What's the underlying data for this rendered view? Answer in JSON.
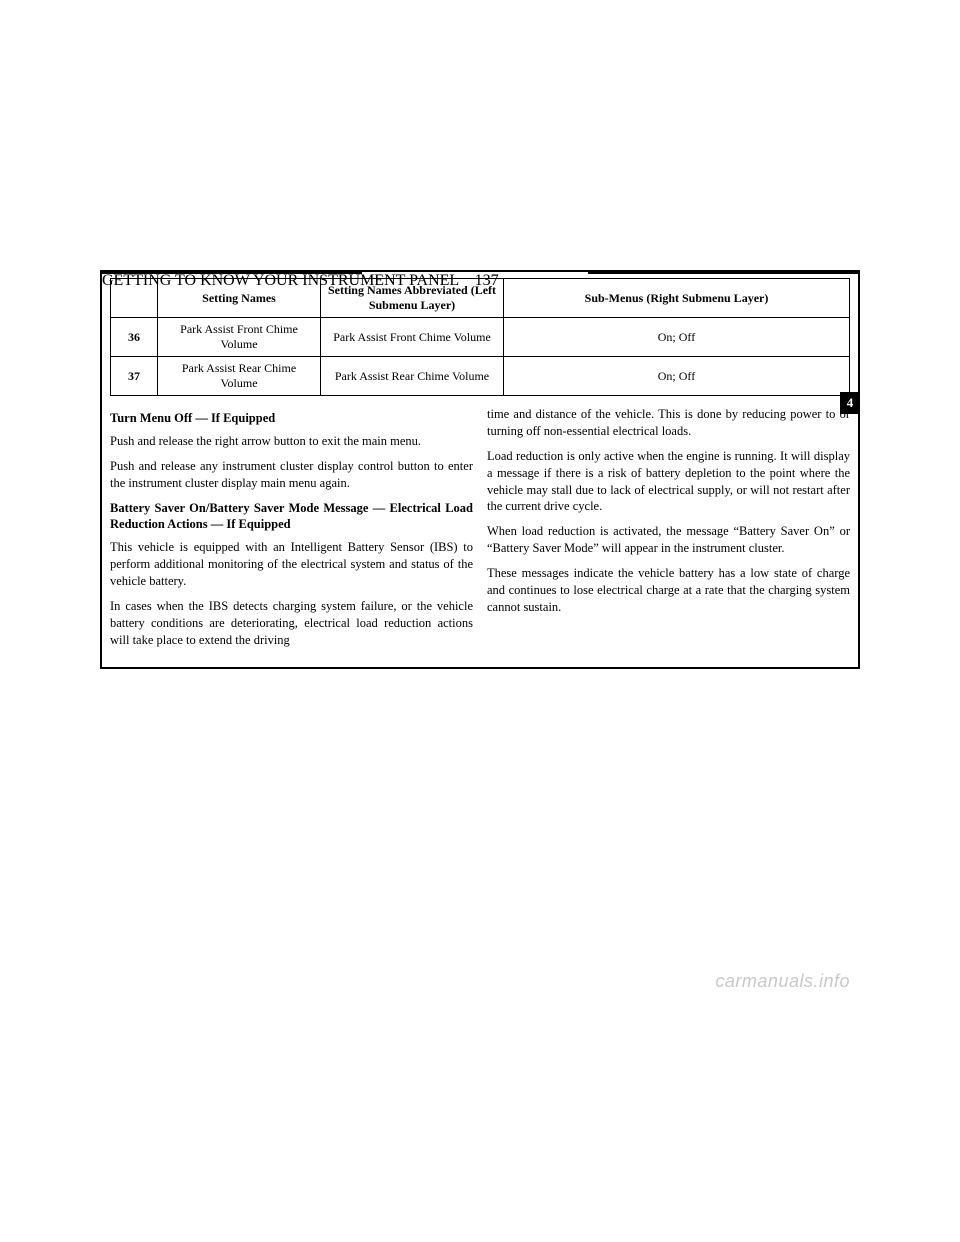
{
  "header": {
    "section_title": "GETTING TO KNOW YOUR INSTRUMENT PANEL",
    "page_number": "137"
  },
  "side_tab": "4",
  "table": {
    "columns": [
      "",
      "Setting Names",
      "Setting Names Abbreviated (Left Submenu Layer)",
      "Sub-Menus (Right Submenu Layer)"
    ],
    "rows": [
      [
        "36",
        "Park Assist Front Chime Volume",
        "Park Assist Front Chime Volume",
        "On; Off"
      ],
      [
        "37",
        "Park Assist Rear Chime Volume",
        "Park Assist Rear Chime Volume",
        "On; Off"
      ]
    ]
  },
  "left_column": {
    "h1": "Turn Menu Off — If Equipped",
    "p1": "Push and release the right arrow button to exit the main menu.",
    "p2": "Push and release any instrument cluster display control button to enter the instrument cluster display main menu again.",
    "h2": "Battery Saver On/Battery Saver Mode Message — Electrical Load Reduction Actions — If Equipped",
    "p3": "This vehicle is equipped with an Intelligent Battery Sensor (IBS) to perform additional monitoring of the electrical system and status of the vehicle battery.",
    "p4": "In cases when the IBS detects charging system failure, or the vehicle battery conditions are deteriorating, electrical load reduction actions will take place to extend the driving"
  },
  "right_column": {
    "p1": "time and distance of the vehicle. This is done by reducing power to or turning off non-essential electrical loads.",
    "p2": "Load reduction is only active when the engine is running. It will display a message if there is a risk of battery depletion to the point where the vehicle may stall due to lack of electrical supply, or will not restart after the current drive cycle.",
    "p3": "When load reduction is activated, the message “Battery Saver On” or “Battery Saver Mode” will appear in the instrument cluster.",
    "p4": "These messages indicate the vehicle battery has a low state of charge and continues to lose electrical charge at a rate that the charging system cannot sustain."
  },
  "watermark": "carmanuals.info",
  "styling": {
    "page_bg": "#ffffff",
    "text_color": "#000000",
    "border_color": "#000000",
    "tab_bg": "#000000",
    "tab_fg": "#ffffff",
    "watermark_color": "#c9c9c9",
    "body_font_family": "Times New Roman",
    "body_font_size_pt": 9,
    "heading_weight": "bold"
  }
}
